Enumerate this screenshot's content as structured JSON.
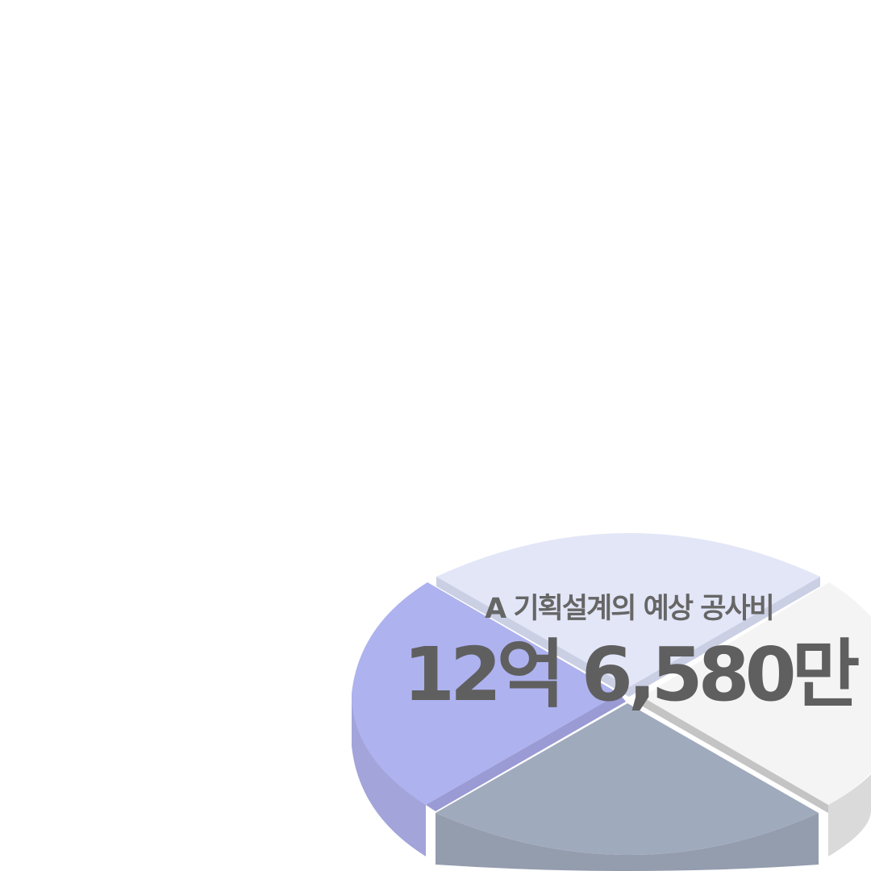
{
  "caption": "A 기획설계의 예상 공사비",
  "amount": "12억 6,580만",
  "colors": {
    "slice_top": "#e2e6f7",
    "slice_top_edge": "#cacfe4",
    "slice_left": "#aeb2ef",
    "slice_left_side": "#a2a4da",
    "slice_right": "#f4f4f4",
    "slice_right_side": "#dadada",
    "slice_bottom": "#a0aabd",
    "slice_bottom_side": "#939dae",
    "text": "#616161"
  }
}
